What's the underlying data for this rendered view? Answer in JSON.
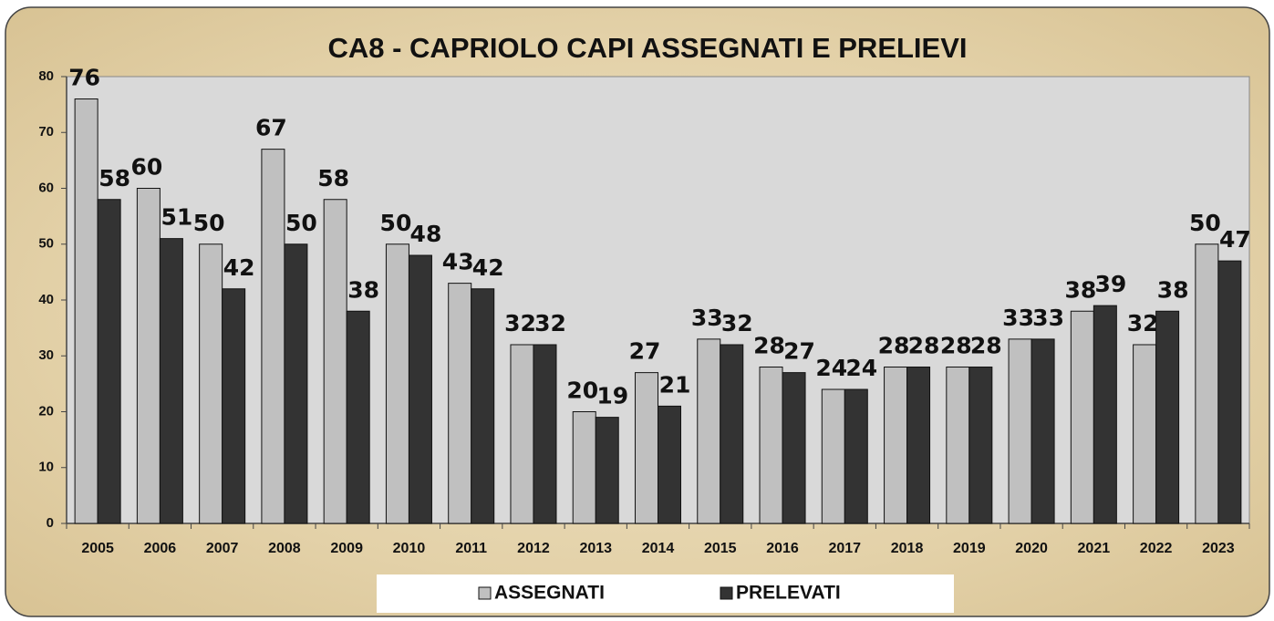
{
  "chart_data": {
    "type": "bar",
    "title": "CA8 - CAPRIOLO CAPI ASSEGNATI E PRELIEVI",
    "categories": [
      "2005",
      "2006",
      "2007",
      "2008",
      "2009",
      "2010",
      "2011",
      "2012",
      "2013",
      "2014",
      "2015",
      "2016",
      "2017",
      "2018",
      "2019",
      "2020",
      "2021",
      "2022",
      "2023"
    ],
    "series": [
      {
        "name": "ASSEGNATI",
        "color": "#c0c0c0",
        "values": [
          76,
          60,
          50,
          67,
          58,
          50,
          43,
          32,
          20,
          27,
          33,
          28,
          24,
          28,
          28,
          33,
          38,
          32,
          50
        ]
      },
      {
        "name": "PRELEVATI",
        "color": "#333333",
        "values": [
          58,
          51,
          42,
          50,
          38,
          48,
          42,
          32,
          19,
          21,
          32,
          27,
          24,
          28,
          28,
          33,
          39,
          38,
          47
        ]
      }
    ],
    "ylim": [
      0,
      80
    ],
    "yticks": [
      0,
      10,
      20,
      30,
      40,
      50,
      60,
      70,
      80
    ],
    "grid": false,
    "legend": "bottom"
  }
}
